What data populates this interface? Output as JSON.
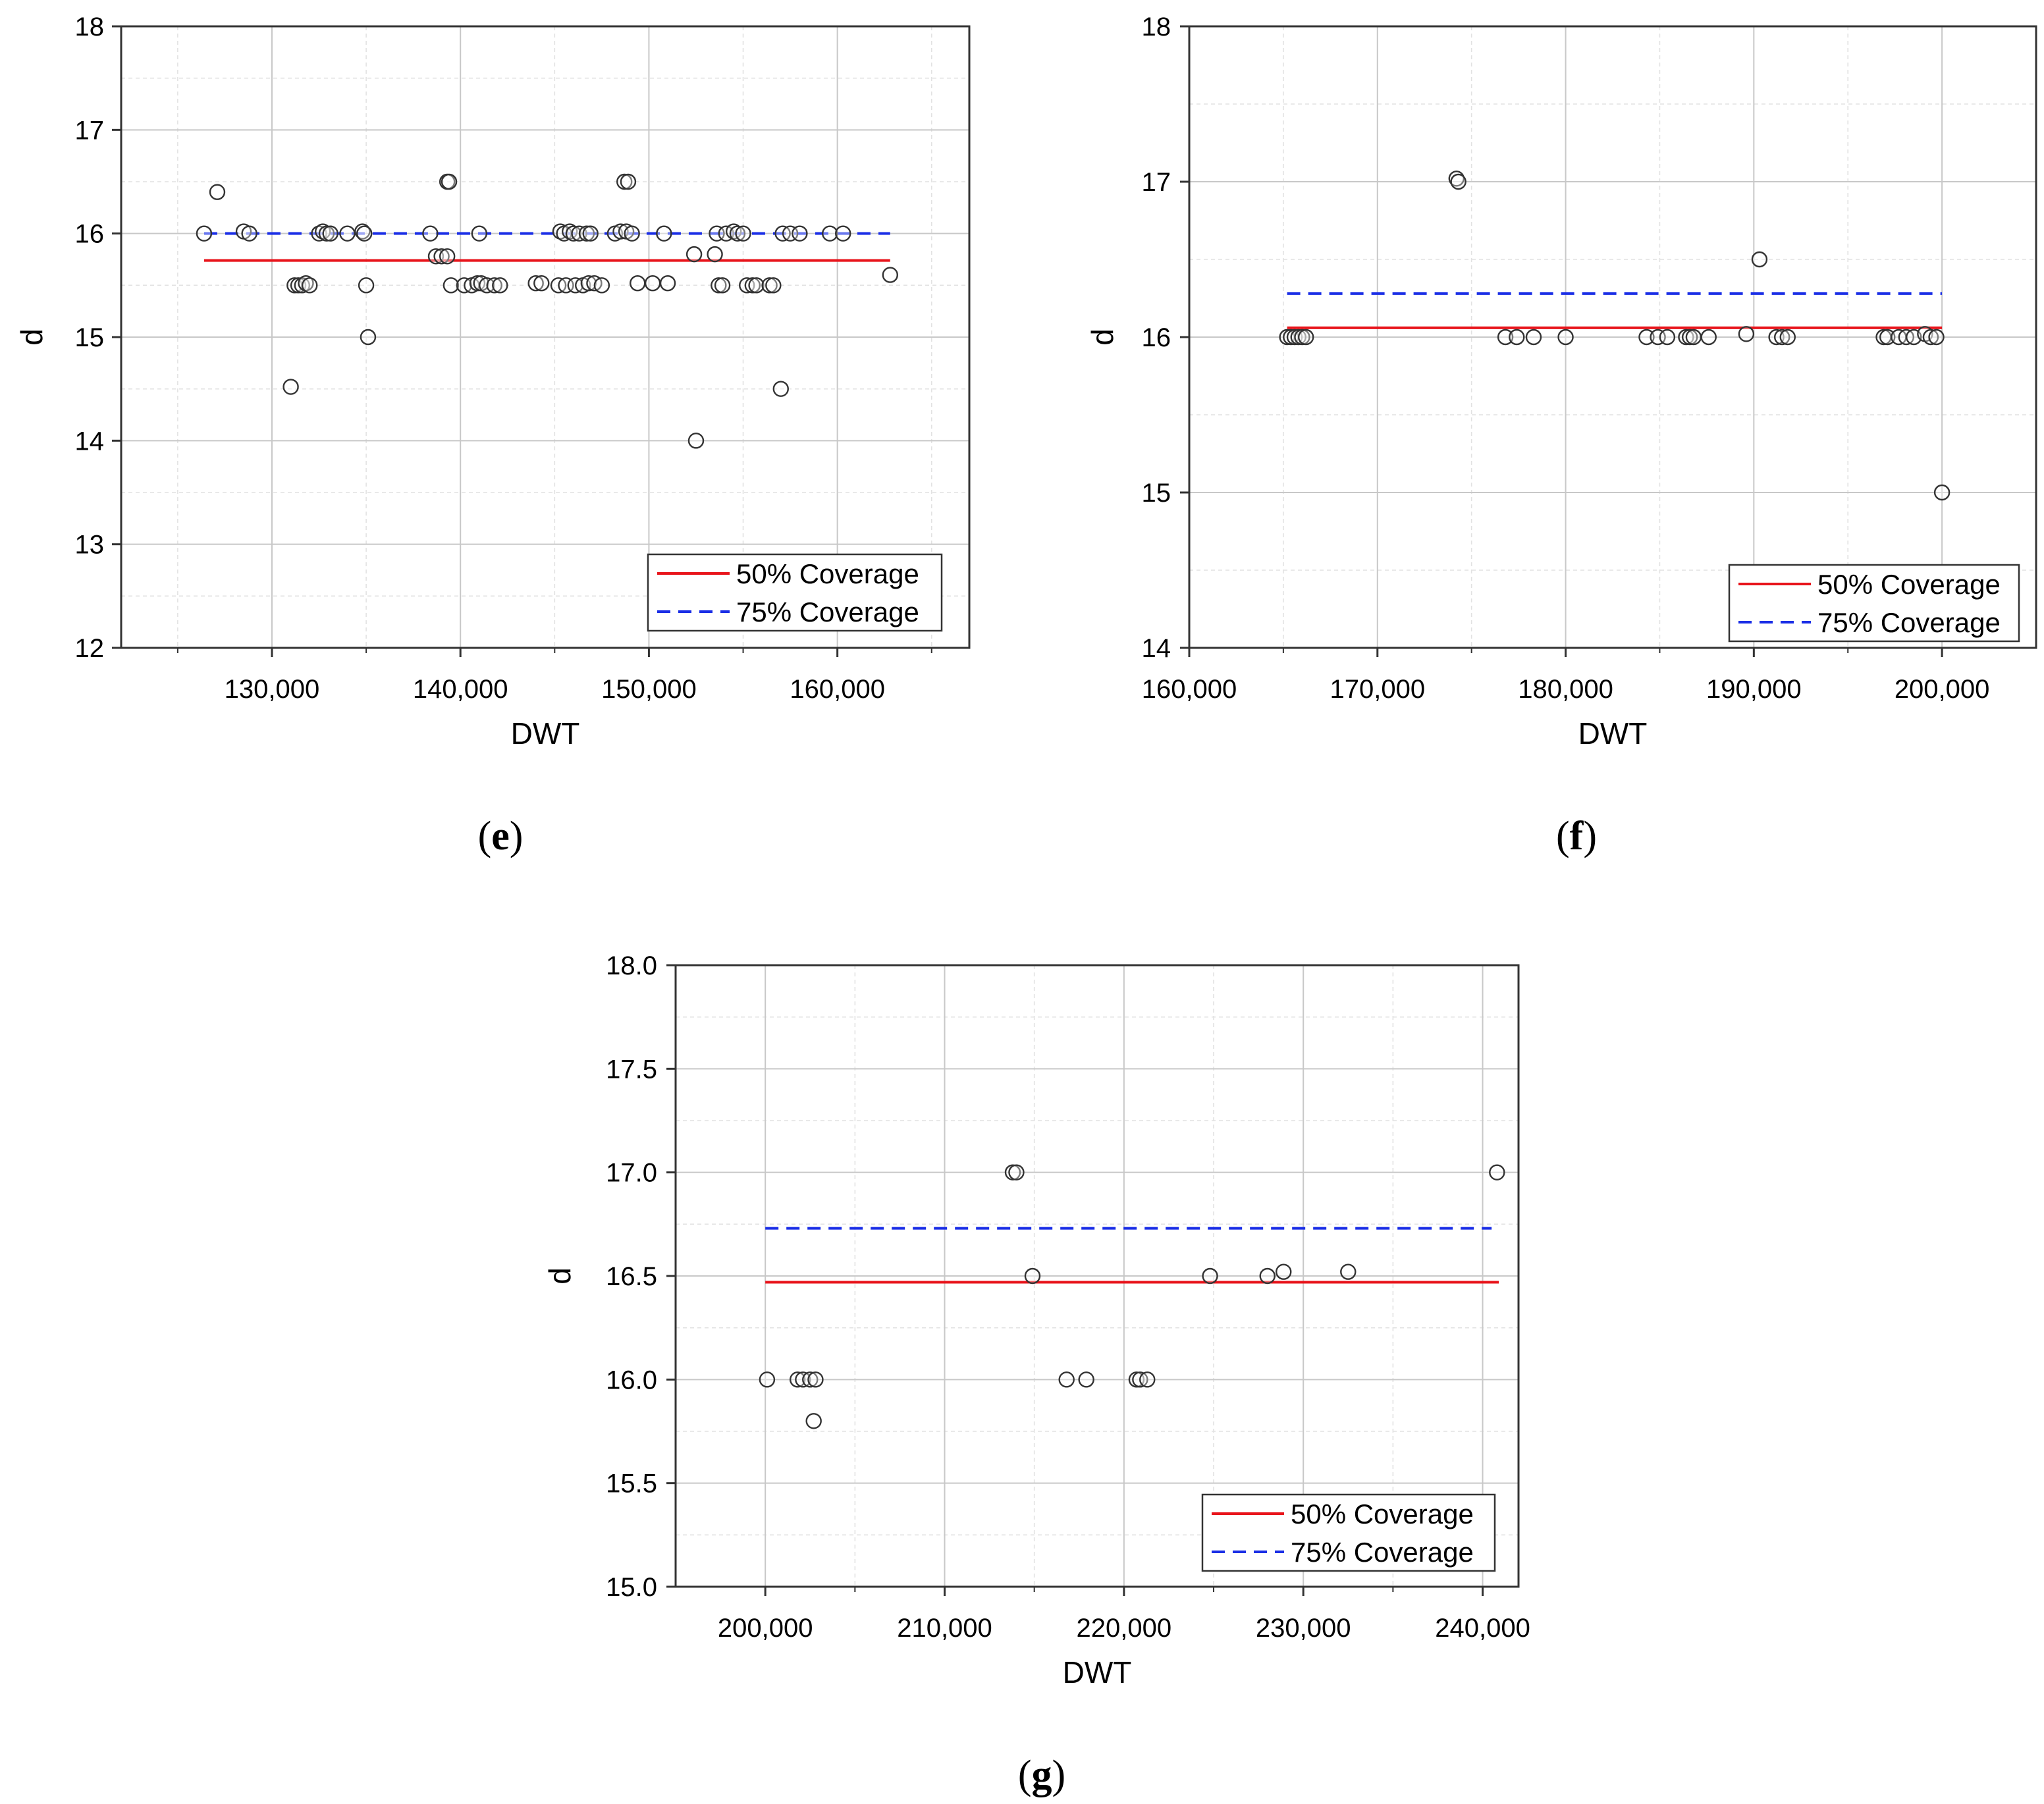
{
  "colors": {
    "series50": "#e8141b",
    "series75": "#1a2ee6",
    "points": "#333333"
  },
  "chart_data": [
    {
      "panel": "(e)",
      "type": "scatter",
      "xlabel": "DWT",
      "ylabel": "d",
      "xlim": [
        122000,
        167000
      ],
      "ylim": [
        12,
        18
      ],
      "xticks": [
        130000,
        140000,
        150000,
        160000
      ],
      "xtick_labels": [
        "130,000",
        "140,000",
        "150,000",
        "160,000"
      ],
      "yticks": [
        12,
        13,
        14,
        15,
        16,
        17,
        18
      ],
      "ytick_labels": [
        "12",
        "13",
        "14",
        "15",
        "16",
        "17",
        "18"
      ],
      "legend_position": "bottom-right",
      "legend": [
        "50% Coverage",
        "75% Coverage"
      ],
      "lines": [
        {
          "name": "50% Coverage",
          "style": "solid",
          "x": [
            126400,
            162800
          ],
          "y": [
            15.74,
            15.74
          ]
        },
        {
          "name": "75% Coverage",
          "style": "dashed",
          "x": [
            126400,
            162800
          ],
          "y": [
            16.0,
            16.0
          ]
        }
      ],
      "points": [
        [
          126400,
          16.0
        ],
        [
          127100,
          16.4
        ],
        [
          128500,
          16.02
        ],
        [
          128800,
          16.0
        ],
        [
          131000,
          14.52
        ],
        [
          131200,
          15.5
        ],
        [
          131400,
          15.5
        ],
        [
          131600,
          15.5
        ],
        [
          131800,
          15.52
        ],
        [
          132000,
          15.5
        ],
        [
          132500,
          16.0
        ],
        [
          132700,
          16.02
        ],
        [
          132900,
          16.0
        ],
        [
          133100,
          16.0
        ],
        [
          134000,
          16.0
        ],
        [
          134800,
          16.02
        ],
        [
          134900,
          16.0
        ],
        [
          135000,
          15.5
        ],
        [
          135100,
          15.0
        ],
        [
          138400,
          16.0
        ],
        [
          138700,
          15.78
        ],
        [
          139000,
          15.78
        ],
        [
          139300,
          15.78
        ],
        [
          139300,
          16.5
        ],
        [
          139400,
          16.5
        ],
        [
          139500,
          15.5
        ],
        [
          140200,
          15.5
        ],
        [
          140600,
          15.5
        ],
        [
          140900,
          15.52
        ],
        [
          141000,
          16.0
        ],
        [
          141100,
          15.52
        ],
        [
          141400,
          15.5
        ],
        [
          141800,
          15.5
        ],
        [
          142100,
          15.5
        ],
        [
          144000,
          15.52
        ],
        [
          144300,
          15.52
        ],
        [
          145200,
          15.5
        ],
        [
          145300,
          16.02
        ],
        [
          145500,
          16.0
        ],
        [
          145600,
          15.5
        ],
        [
          145800,
          16.02
        ],
        [
          146000,
          16.0
        ],
        [
          146100,
          15.5
        ],
        [
          146300,
          16.0
        ],
        [
          146500,
          15.5
        ],
        [
          146700,
          16.0
        ],
        [
          146800,
          15.52
        ],
        [
          146900,
          16.0
        ],
        [
          147100,
          15.52
        ],
        [
          147500,
          15.5
        ],
        [
          148200,
          16.0
        ],
        [
          148500,
          16.02
        ],
        [
          148700,
          16.5
        ],
        [
          148800,
          16.02
        ],
        [
          148900,
          16.5
        ],
        [
          149100,
          16.0
        ],
        [
          149400,
          15.52
        ],
        [
          150200,
          15.52
        ],
        [
          150800,
          16.0
        ],
        [
          151000,
          15.52
        ],
        [
          152400,
          15.8
        ],
        [
          152500,
          14.0
        ],
        [
          153500,
          15.8
        ],
        [
          153600,
          16.0
        ],
        [
          153700,
          15.5
        ],
        [
          153900,
          15.5
        ],
        [
          154100,
          16.0
        ],
        [
          154500,
          16.02
        ],
        [
          154700,
          16.0
        ],
        [
          155000,
          16.0
        ],
        [
          155200,
          15.5
        ],
        [
          155500,
          15.5
        ],
        [
          155700,
          15.5
        ],
        [
          156400,
          15.5
        ],
        [
          156600,
          15.5
        ],
        [
          157000,
          14.5
        ],
        [
          157100,
          16.0
        ],
        [
          157500,
          16.0
        ],
        [
          158000,
          16.0
        ],
        [
          159600,
          16.0
        ],
        [
          160300,
          16.0
        ],
        [
          162800,
          15.6
        ]
      ]
    },
    {
      "panel": "(f)",
      "type": "scatter",
      "xlabel": "DWT",
      "ylabel": "d",
      "xlim": [
        160000,
        205000
      ],
      "ylim": [
        14,
        18
      ],
      "xticks": [
        160000,
        170000,
        180000,
        190000,
        200000
      ],
      "xtick_labels": [
        "160,000",
        "170,000",
        "180,000",
        "190,000",
        "200,000"
      ],
      "yticks": [
        14,
        15,
        16,
        17,
        18
      ],
      "ytick_labels": [
        "14",
        "15",
        "16",
        "17",
        "18"
      ],
      "legend_position": "bottom-right",
      "legend": [
        "50% Coverage",
        "75% Coverage"
      ],
      "lines": [
        {
          "name": "50% Coverage",
          "style": "solid",
          "x": [
            165200,
            200000
          ],
          "y": [
            16.06,
            16.06
          ]
        },
        {
          "name": "75% Coverage",
          "style": "dashed",
          "x": [
            165200,
            200000
          ],
          "y": [
            16.28,
            16.28
          ]
        }
      ],
      "points": [
        [
          165200,
          16.0
        ],
        [
          165400,
          16.0
        ],
        [
          165600,
          16.0
        ],
        [
          165800,
          16.0
        ],
        [
          166000,
          16.0
        ],
        [
          166200,
          16.0
        ],
        [
          174200,
          17.02
        ],
        [
          174300,
          17.0
        ],
        [
          176800,
          16.0
        ],
        [
          177400,
          16.0
        ],
        [
          178300,
          16.0
        ],
        [
          180000,
          16.0
        ],
        [
          184300,
          16.0
        ],
        [
          184900,
          16.0
        ],
        [
          185400,
          16.0
        ],
        [
          186400,
          16.0
        ],
        [
          186600,
          16.0
        ],
        [
          186800,
          16.0
        ],
        [
          187600,
          16.0
        ],
        [
          189600,
          16.02
        ],
        [
          190300,
          16.5
        ],
        [
          191200,
          16.0
        ],
        [
          191500,
          16.0
        ],
        [
          191800,
          16.0
        ],
        [
          196900,
          16.0
        ],
        [
          197100,
          16.0
        ],
        [
          197700,
          16.0
        ],
        [
          198100,
          16.0
        ],
        [
          198500,
          16.0
        ],
        [
          199100,
          16.02
        ],
        [
          199400,
          16.0
        ],
        [
          199700,
          16.0
        ],
        [
          200000,
          15.0
        ]
      ]
    },
    {
      "panel": "(g)",
      "type": "scatter",
      "xlabel": "DWT",
      "ylabel": "d",
      "xlim": [
        195000,
        242000
      ],
      "ylim": [
        15.0,
        18.0
      ],
      "xticks": [
        200000,
        210000,
        220000,
        230000,
        240000
      ],
      "xtick_labels": [
        "200,000",
        "210,000",
        "220,000",
        "230,000",
        "240,000"
      ],
      "yticks": [
        15.0,
        15.5,
        16.0,
        16.5,
        17.0,
        17.5,
        18.0
      ],
      "ytick_labels": [
        "15.0",
        "15.5",
        "16.0",
        "16.5",
        "17.0",
        "17.5",
        "18.0"
      ],
      "legend_position": "bottom-right",
      "legend": [
        "50% Coverage",
        "75% Coverage"
      ],
      "lines": [
        {
          "name": "50% Coverage",
          "style": "solid",
          "x": [
            200000,
            240900
          ],
          "y": [
            16.47,
            16.47
          ]
        },
        {
          "name": "75% Coverage",
          "style": "dashed",
          "x": [
            200000,
            240500
          ],
          "y": [
            16.73,
            16.73
          ]
        }
      ],
      "points": [
        [
          200100,
          16.0
        ],
        [
          201800,
          16.0
        ],
        [
          202100,
          16.0
        ],
        [
          202500,
          16.0
        ],
        [
          202700,
          15.8
        ],
        [
          202800,
          16.0
        ],
        [
          213800,
          17.0
        ],
        [
          214000,
          17.0
        ],
        [
          214900,
          16.5
        ],
        [
          216800,
          16.0
        ],
        [
          217900,
          16.0
        ],
        [
          220700,
          16.0
        ],
        [
          220900,
          16.0
        ],
        [
          221300,
          16.0
        ],
        [
          224800,
          16.5
        ],
        [
          228000,
          16.5
        ],
        [
          228900,
          16.52
        ],
        [
          232500,
          16.52
        ],
        [
          240800,
          17.0
        ]
      ]
    }
  ]
}
